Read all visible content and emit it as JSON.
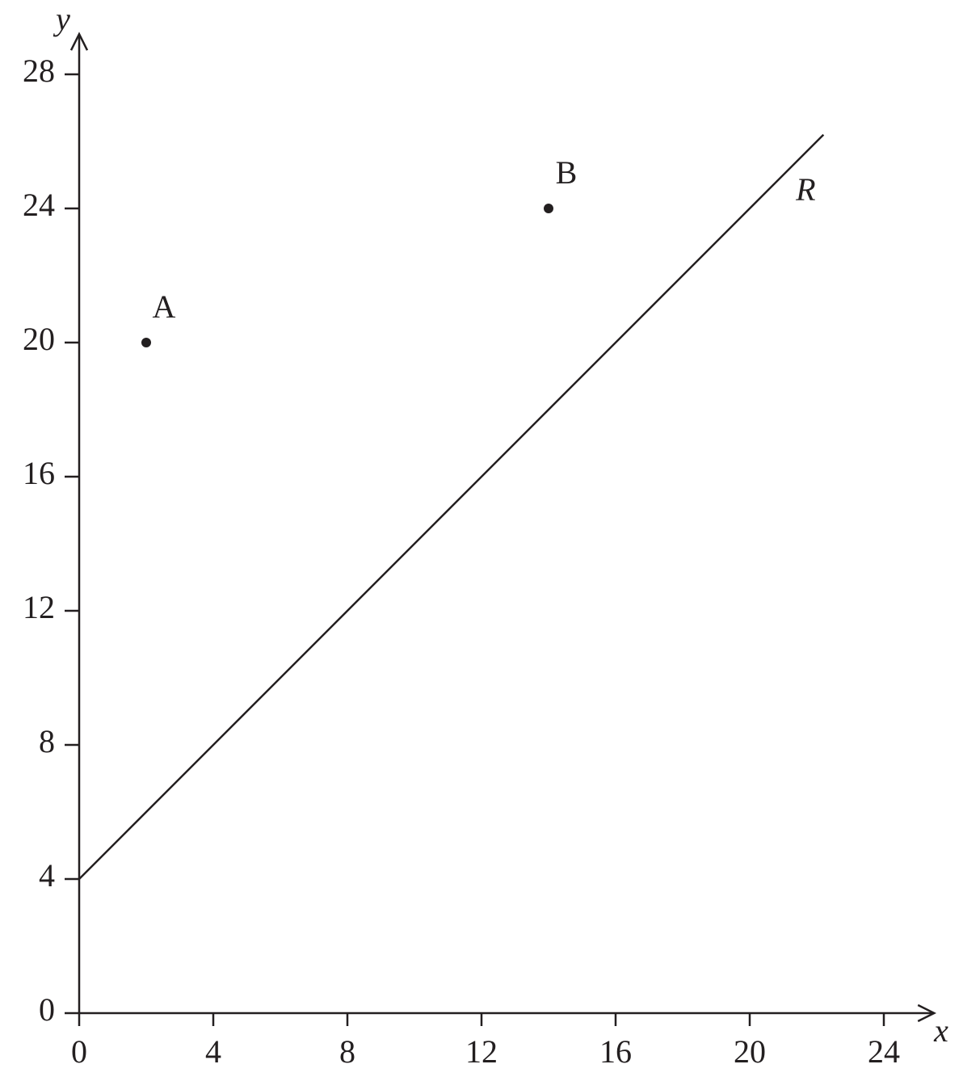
{
  "chart_data": {
    "type": "line",
    "xlabel": "x",
    "ylabel": "y",
    "xlim": [
      0,
      25.5
    ],
    "ylim": [
      0,
      29.2
    ],
    "xticks": [
      0,
      4,
      8,
      12,
      16,
      20,
      24
    ],
    "yticks": [
      0,
      4,
      8,
      12,
      16,
      20,
      24,
      28
    ],
    "series": [
      {
        "name": "R",
        "color": "#231f20",
        "x": [
          0,
          22.2
        ],
        "values": [
          4,
          26.2
        ]
      }
    ],
    "points": [
      {
        "name": "A",
        "x": 2,
        "y": 20
      },
      {
        "name": "B",
        "x": 14,
        "y": 24
      }
    ]
  }
}
